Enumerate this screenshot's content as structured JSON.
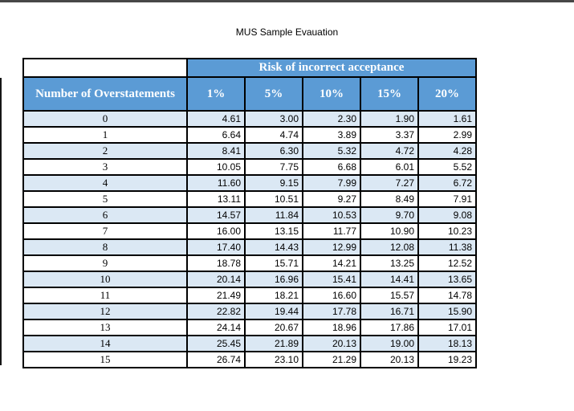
{
  "page": {
    "title": "MUS Sample Evauation"
  },
  "colors": {
    "header_blue": "#5b9bd5",
    "band_blue": "#dbe8f4",
    "border": "#000000",
    "top_rule": "#474747"
  },
  "table": {
    "group_header": "Risk of incorrect acceptance",
    "row_header_label": "Number of Overstatements",
    "column_headers": [
      "1%",
      "5%",
      "10%",
      "15%",
      "20%"
    ],
    "rows": [
      {
        "label": "0",
        "values": [
          "4.61",
          "3.00",
          "2.30",
          "1.90",
          "1.61"
        ]
      },
      {
        "label": "1",
        "values": [
          "6.64",
          "4.74",
          "3.89",
          "3.37",
          "2.99"
        ]
      },
      {
        "label": "2",
        "values": [
          "8.41",
          "6.30",
          "5.32",
          "4.72",
          "4.28"
        ]
      },
      {
        "label": "3",
        "values": [
          "10.05",
          "7.75",
          "6.68",
          "6.01",
          "5.52"
        ]
      },
      {
        "label": "4",
        "values": [
          "11.60",
          "9.15",
          "7.99",
          "7.27",
          "6.72"
        ]
      },
      {
        "label": "5",
        "values": [
          "13.11",
          "10.51",
          "9.27",
          "8.49",
          "7.91"
        ]
      },
      {
        "label": "6",
        "values": [
          "14.57",
          "11.84",
          "10.53",
          "9.70",
          "9.08"
        ]
      },
      {
        "label": "7",
        "values": [
          "16.00",
          "13.15",
          "11.77",
          "10.90",
          "10.23"
        ]
      },
      {
        "label": "8",
        "values": [
          "17.40",
          "14.43",
          "12.99",
          "12.08",
          "11.38"
        ]
      },
      {
        "label": "9",
        "values": [
          "18.78",
          "15.71",
          "14.21",
          "13.25",
          "12.52"
        ]
      },
      {
        "label": "10",
        "values": [
          "20.14",
          "16.96",
          "15.41",
          "14.41",
          "13.65"
        ]
      },
      {
        "label": "11",
        "values": [
          "21.49",
          "18.21",
          "16.60",
          "15.57",
          "14.78"
        ]
      },
      {
        "label": "12",
        "values": [
          "22.82",
          "19.44",
          "17.78",
          "16.71",
          "15.90"
        ]
      },
      {
        "label": "13",
        "values": [
          "24.14",
          "20.67",
          "18.96",
          "17.86",
          "17.01"
        ]
      },
      {
        "label": "14",
        "values": [
          "25.45",
          "21.89",
          "20.13",
          "19.00",
          "18.13"
        ]
      },
      {
        "label": "15",
        "values": [
          "26.74",
          "23.10",
          "21.29",
          "20.13",
          "19.23"
        ]
      }
    ]
  }
}
